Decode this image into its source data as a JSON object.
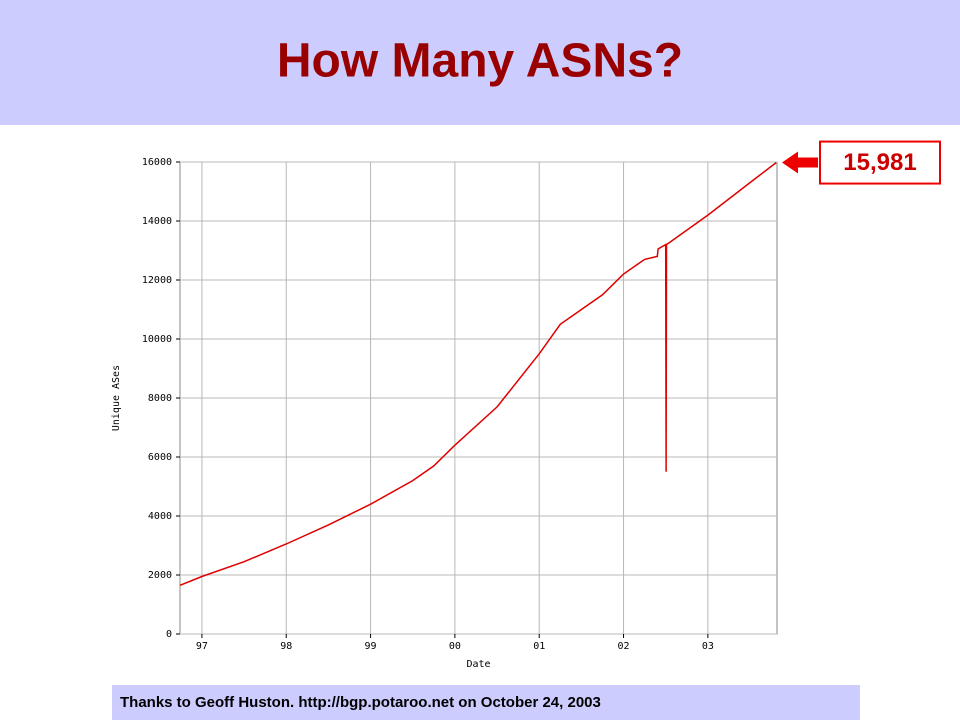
{
  "title": "How Many ASNs?",
  "footer": "Thanks to Geoff Huston. http://bgp.potaroo.net on October 24, 2003",
  "chart_data": {
    "type": "line",
    "xlabel": "Date",
    "ylabel": "Unique ASes",
    "xlim": [
      1996.74,
      2003.82
    ],
    "ylim": [
      0,
      16000
    ],
    "yticks": [
      0,
      2000,
      4000,
      6000,
      8000,
      10000,
      12000,
      14000,
      16000
    ],
    "xticks": [
      {
        "value": 1997,
        "label": "97"
      },
      {
        "value": 1998,
        "label": "98"
      },
      {
        "value": 1999,
        "label": "99"
      },
      {
        "value": 2000,
        "label": "00"
      },
      {
        "value": 2001,
        "label": "01"
      },
      {
        "value": 2002,
        "label": "02"
      },
      {
        "value": 2003,
        "label": "03"
      }
    ],
    "grid": true,
    "color": "#e00000",
    "x": [
      1996.74,
      1997.0,
      1997.5,
      1998.0,
      1998.5,
      1999.0,
      1999.5,
      1999.75,
      2000.0,
      2000.5,
      2001.0,
      2001.25,
      2001.75,
      2002.0,
      2002.25,
      2002.4,
      2002.41,
      2002.5,
      2002.505,
      2002.51,
      2003.0,
      2003.5,
      2003.81
    ],
    "values": [
      1650,
      1950,
      2450,
      3050,
      3700,
      4400,
      5200,
      5700,
      6400,
      7700,
      9500,
      10500,
      11500,
      12200,
      12700,
      12800,
      13050,
      13200,
      5500,
      13200,
      14200,
      15300,
      15981
    ],
    "annotation": {
      "value": 15981,
      "label": "15,981"
    }
  }
}
